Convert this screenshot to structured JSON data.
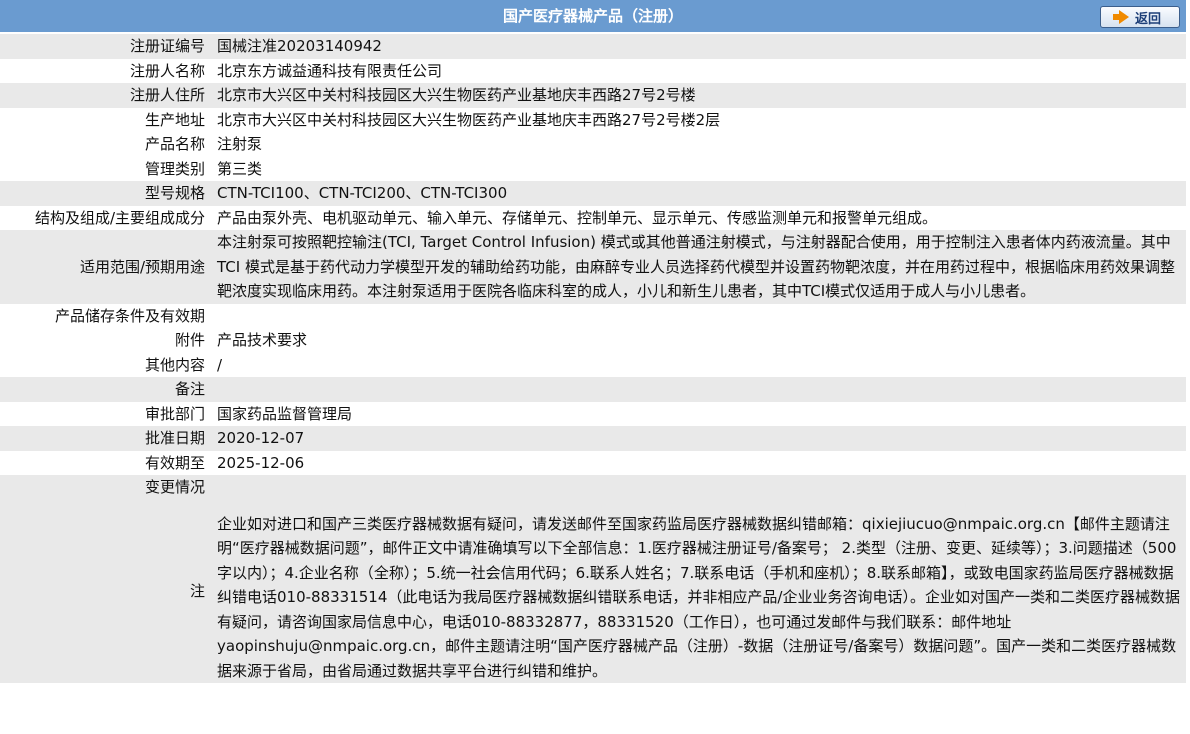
{
  "header": {
    "title": "国产医疗器械产品（注册）",
    "back_label": "返回",
    "back_icon": "arrow-right-icon"
  },
  "colors": {
    "header_bg": "#6a9bd0",
    "row_alt": "#e9e9e9"
  },
  "rows": [
    {
      "label": "注册证编号",
      "value": "国械注准20203140942"
    },
    {
      "label": "注册人名称",
      "value": "北京东方诚益通科技有限责任公司"
    },
    {
      "label": "注册人住所",
      "value": "北京市大兴区中关村科技园区大兴生物医药产业基地庆丰西路27号2号楼"
    },
    {
      "label": "生产地址",
      "value": "北京市大兴区中关村科技园区大兴生物医药产业基地庆丰西路27号2号楼2层"
    },
    {
      "label": "产品名称",
      "value": "注射泵"
    },
    {
      "label": "管理类别",
      "value": "第三类"
    },
    {
      "label": "型号规格",
      "value": "CTN-TCI100、CTN-TCI200、CTN-TCI300"
    },
    {
      "label": "结构及组成/主要组成成分",
      "value": "产品由泵外壳、电机驱动单元、输入单元、存储单元、控制单元、显示单元、传感监测单元和报警单元组成。"
    },
    {
      "label": "适用范围/预期用途",
      "value": "本注射泵可按照靶控输注(TCI, Target Control Infusion) 模式或其他普通注射模式，与注射器配合使用，用于控制注入患者体内药液流量。其中TCI 模式是基于药代动力学模型开发的辅助给药功能，由麻醉专业人员选择药代模型并设置药物靶浓度，并在用药过程中，根据临床用药效果调整靶浓度实现临床用药。本注射泵适用于医院各临床科室的成人，小儿和新生儿患者，其中TCI模式仅适用于成人与小儿患者。"
    },
    {
      "label": "产品储存条件及有效期",
      "value": ""
    },
    {
      "label": "附件",
      "value": "产品技术要求"
    },
    {
      "label": "其他内容",
      "value": "/"
    },
    {
      "label": "备注",
      "value": ""
    },
    {
      "label": "审批部门",
      "value": "国家药品监督管理局"
    },
    {
      "label": "批准日期",
      "value": "2020-12-07"
    },
    {
      "label": "有效期至",
      "value": "2025-12-06"
    },
    {
      "label": "变更情况",
      "value": ""
    },
    {
      "label": "注",
      "value": "企业如对进口和国产三类医疗器械数据有疑问，请发送邮件至国家药监局医疗器械数据纠错邮箱：qixiejiucuo@nmpaic.org.cn【邮件主题请注明“医疗器械数据问题”，邮件正文中请准确填写以下全部信息：1.医疗器械注册证号/备案号； 2.类型（注册、变更、延续等）；3.问题描述（500字以内）；4.企业名称（全称）；5.统一社会信用代码；6.联系人姓名；7.联系电话（手机和座机）；8.联系邮箱】，或致电国家药监局医疗器械数据纠错电话010-88331514（此电话为我局医疗器械数据纠错联系电话，并非相应产品/企业业务咨询电话）。企业如对国产一类和二类医疗器械数据有疑问，请咨询国家局信息中心，电话010-88332877，88331520（工作日），也可通过发邮件与我们联系：邮件地址yaopinshuju@nmpaic.org.cn，邮件主题请注明“国产医疗器械产品（注册）-数据（注册证号/备案号）数据问题”。国产一类和二类医疗器械数据来源于省局，由省局通过数据共享平台进行纠错和维护。"
    }
  ]
}
